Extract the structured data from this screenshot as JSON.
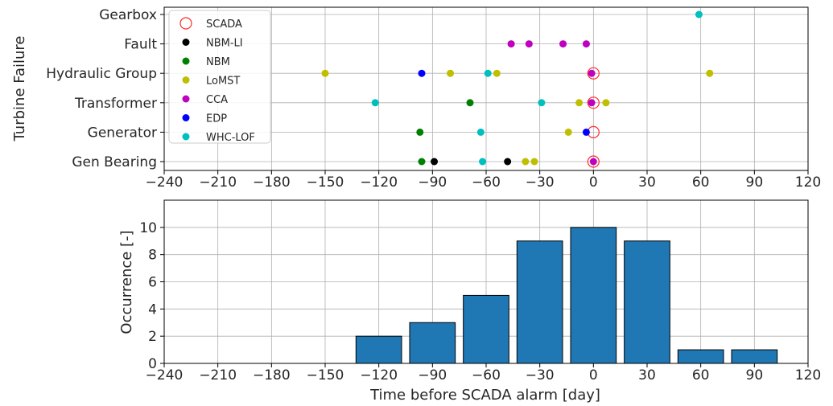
{
  "chart_data": [
    {
      "type": "scatter",
      "ylabel": "Turbine Failure",
      "xlim": [
        -240,
        120
      ],
      "xticks": [
        -240,
        -210,
        -180,
        -150,
        -120,
        -90,
        -60,
        -30,
        0,
        30,
        60,
        90,
        120
      ],
      "categories": [
        "Gen Bearing",
        "Generator",
        "Transformer",
        "Hydraulic Group",
        "Fault",
        "Gearbox"
      ],
      "grid": true,
      "legend_position": "upper-left",
      "series": [
        {
          "name": "SCADA",
          "color": "#ff2a2a",
          "marker": "hollow-circle",
          "points": [
            [
              0,
              "Gen Bearing"
            ],
            [
              0,
              "Generator"
            ],
            [
              0,
              "Transformer"
            ],
            [
              0,
              "Hydraulic Group"
            ]
          ]
        },
        {
          "name": "NBM-LI",
          "color": "#000000",
          "marker": "dot",
          "points": [
            [
              -89,
              "Gen Bearing"
            ],
            [
              -48,
              "Gen Bearing"
            ]
          ]
        },
        {
          "name": "NBM",
          "color": "#008000",
          "marker": "dot",
          "points": [
            [
              -96,
              "Gen Bearing"
            ],
            [
              -97,
              "Generator"
            ],
            [
              -69,
              "Transformer"
            ]
          ]
        },
        {
          "name": "LoMST",
          "color": "#bfbf00",
          "marker": "dot",
          "points": [
            [
              -38,
              "Gen Bearing"
            ],
            [
              -33,
              "Gen Bearing"
            ],
            [
              -14,
              "Generator"
            ],
            [
              -8,
              "Transformer"
            ],
            [
              7,
              "Transformer"
            ],
            [
              -150,
              "Hydraulic Group"
            ],
            [
              -80,
              "Hydraulic Group"
            ],
            [
              -54,
              "Hydraulic Group"
            ],
            [
              65,
              "Hydraulic Group"
            ]
          ]
        },
        {
          "name": "CCA",
          "color": "#bf00bf",
          "marker": "dot",
          "points": [
            [
              0,
              "Gen Bearing"
            ],
            [
              -1,
              "Transformer"
            ],
            [
              -1,
              "Hydraulic Group"
            ],
            [
              -46,
              "Fault"
            ],
            [
              -36,
              "Fault"
            ],
            [
              -17,
              "Fault"
            ],
            [
              -4,
              "Fault"
            ]
          ]
        },
        {
          "name": "EDP",
          "color": "#0000ff",
          "marker": "dot",
          "points": [
            [
              -4,
              "Generator"
            ],
            [
              -96,
              "Hydraulic Group"
            ]
          ]
        },
        {
          "name": "WHC-LOF",
          "color": "#00bfbf",
          "marker": "dot",
          "points": [
            [
              -62,
              "Gen Bearing"
            ],
            [
              -63,
              "Generator"
            ],
            [
              -122,
              "Transformer"
            ],
            [
              -29,
              "Transformer"
            ],
            [
              -59,
              "Hydraulic Group"
            ],
            [
              59,
              "Gearbox"
            ]
          ]
        }
      ]
    },
    {
      "type": "bar",
      "xlabel": "Time before SCADA alarm [day]",
      "ylabel": "Occurrence [-]",
      "xlim": [
        -240,
        120
      ],
      "ylim": [
        0,
        12
      ],
      "xticks": [
        -240,
        -210,
        -180,
        -150,
        -120,
        -90,
        -60,
        -30,
        0,
        30,
        60,
        90,
        120
      ],
      "yticks": [
        0,
        2,
        4,
        6,
        8,
        10
      ],
      "bin_width": 30,
      "bar_color": "#1f77b4",
      "grid": true,
      "categories": [
        -120,
        -90,
        -60,
        -30,
        0,
        30,
        60,
        90
      ],
      "values": [
        2,
        3,
        5,
        9,
        10,
        9,
        1,
        1
      ]
    }
  ]
}
